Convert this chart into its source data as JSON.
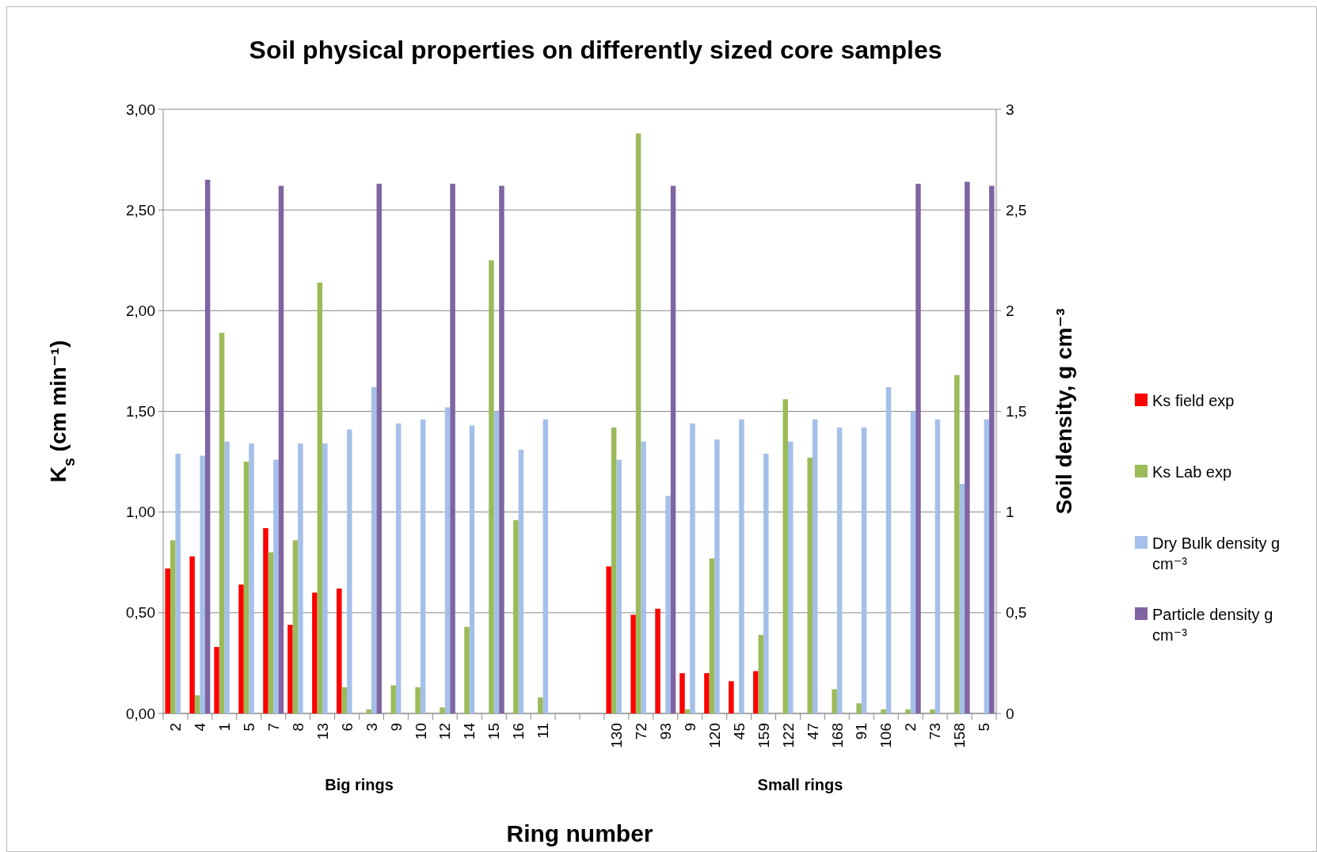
{
  "chart_data": {
    "type": "bar",
    "title": "Soil physical properties on differently sized core samples",
    "xlabel": "Ring number",
    "ylabel": "K$_{s}$  (cm min⁻¹)",
    "y2label": "Soil density, g cm⁻³",
    "categories": [
      "2",
      "4",
      "1",
      "5",
      "7",
      "8",
      "13",
      "6",
      "3",
      "9",
      "10",
      "12",
      "14",
      "15",
      "16",
      "11",
      null,
      null,
      "130",
      "72",
      "93",
      "9",
      "120",
      "45",
      "159",
      "122",
      "47",
      "168",
      "91",
      "106",
      "2",
      "73",
      "158",
      "5"
    ],
    "series": [
      {
        "name": "Ks field exp",
        "color": "#ff0000",
        "values": [
          0.72,
          0.78,
          0.33,
          0.64,
          0.92,
          0.44,
          0.6,
          0.62,
          null,
          null,
          null,
          null,
          null,
          null,
          null,
          null,
          null,
          null,
          0.73,
          0.49,
          0.52,
          0.2,
          0.2,
          0.16,
          0.21,
          null,
          null,
          null,
          null,
          null,
          null,
          null,
          null,
          null
        ]
      },
      {
        "name": "Ks Lab exp",
        "color": "#9bbb59",
        "values": [
          0.86,
          0.09,
          1.89,
          1.25,
          0.8,
          0.86,
          2.14,
          0.13,
          0.02,
          0.14,
          0.13,
          0.03,
          0.43,
          2.25,
          0.96,
          0.08,
          null,
          null,
          1.42,
          2.88,
          null,
          0.02,
          0.77,
          null,
          0.39,
          1.56,
          1.27,
          0.12,
          0.05,
          0.02,
          0.02,
          0.02,
          1.68,
          null
        ]
      },
      {
        "name": "Dry Bulk density g cm⁻³",
        "color": "#a4c0ea",
        "axis": "y2",
        "values": [
          1.29,
          1.28,
          1.35,
          1.34,
          1.26,
          1.34,
          1.34,
          1.41,
          1.62,
          1.44,
          1.46,
          1.52,
          1.43,
          1.5,
          1.31,
          1.46,
          null,
          null,
          1.26,
          1.35,
          1.08,
          1.44,
          1.36,
          1.46,
          1.29,
          1.35,
          1.46,
          1.42,
          1.42,
          1.62,
          1.5,
          1.46,
          1.14,
          1.46
        ]
      },
      {
        "name": "Particle density g cm⁻³",
        "color": "#8064a2",
        "axis": "y2",
        "values": [
          null,
          2.65,
          null,
          null,
          2.62,
          null,
          null,
          null,
          2.63,
          null,
          null,
          2.63,
          null,
          2.62,
          null,
          null,
          null,
          null,
          null,
          null,
          2.62,
          null,
          null,
          null,
          null,
          null,
          null,
          null,
          null,
          null,
          2.63,
          null,
          2.64,
          2.62
        ]
      }
    ],
    "ylim": [
      0,
      3
    ],
    "yticks": [
      {
        "value": 0,
        "label": "0,00"
      },
      {
        "value": 0.5,
        "label": "0,50"
      },
      {
        "value": 1,
        "label": "1,00"
      },
      {
        "value": 1.5,
        "label": "1,50"
      },
      {
        "value": 2,
        "label": "2,00"
      },
      {
        "value": 2.5,
        "label": "2,50"
      },
      {
        "value": 3,
        "label": "3,00"
      }
    ],
    "y2lim": [
      0,
      3
    ],
    "y2ticks": [
      0,
      {
        "value": 0.5,
        "label": "0,5"
      },
      1,
      {
        "value": 1.5,
        "label": "1,5"
      },
      2,
      {
        "value": 2.5,
        "label": "2,5"
      },
      3
    ],
    "grid": "y",
    "legend": "right",
    "annotations": [
      "Big rings",
      "Small rings"
    ]
  }
}
